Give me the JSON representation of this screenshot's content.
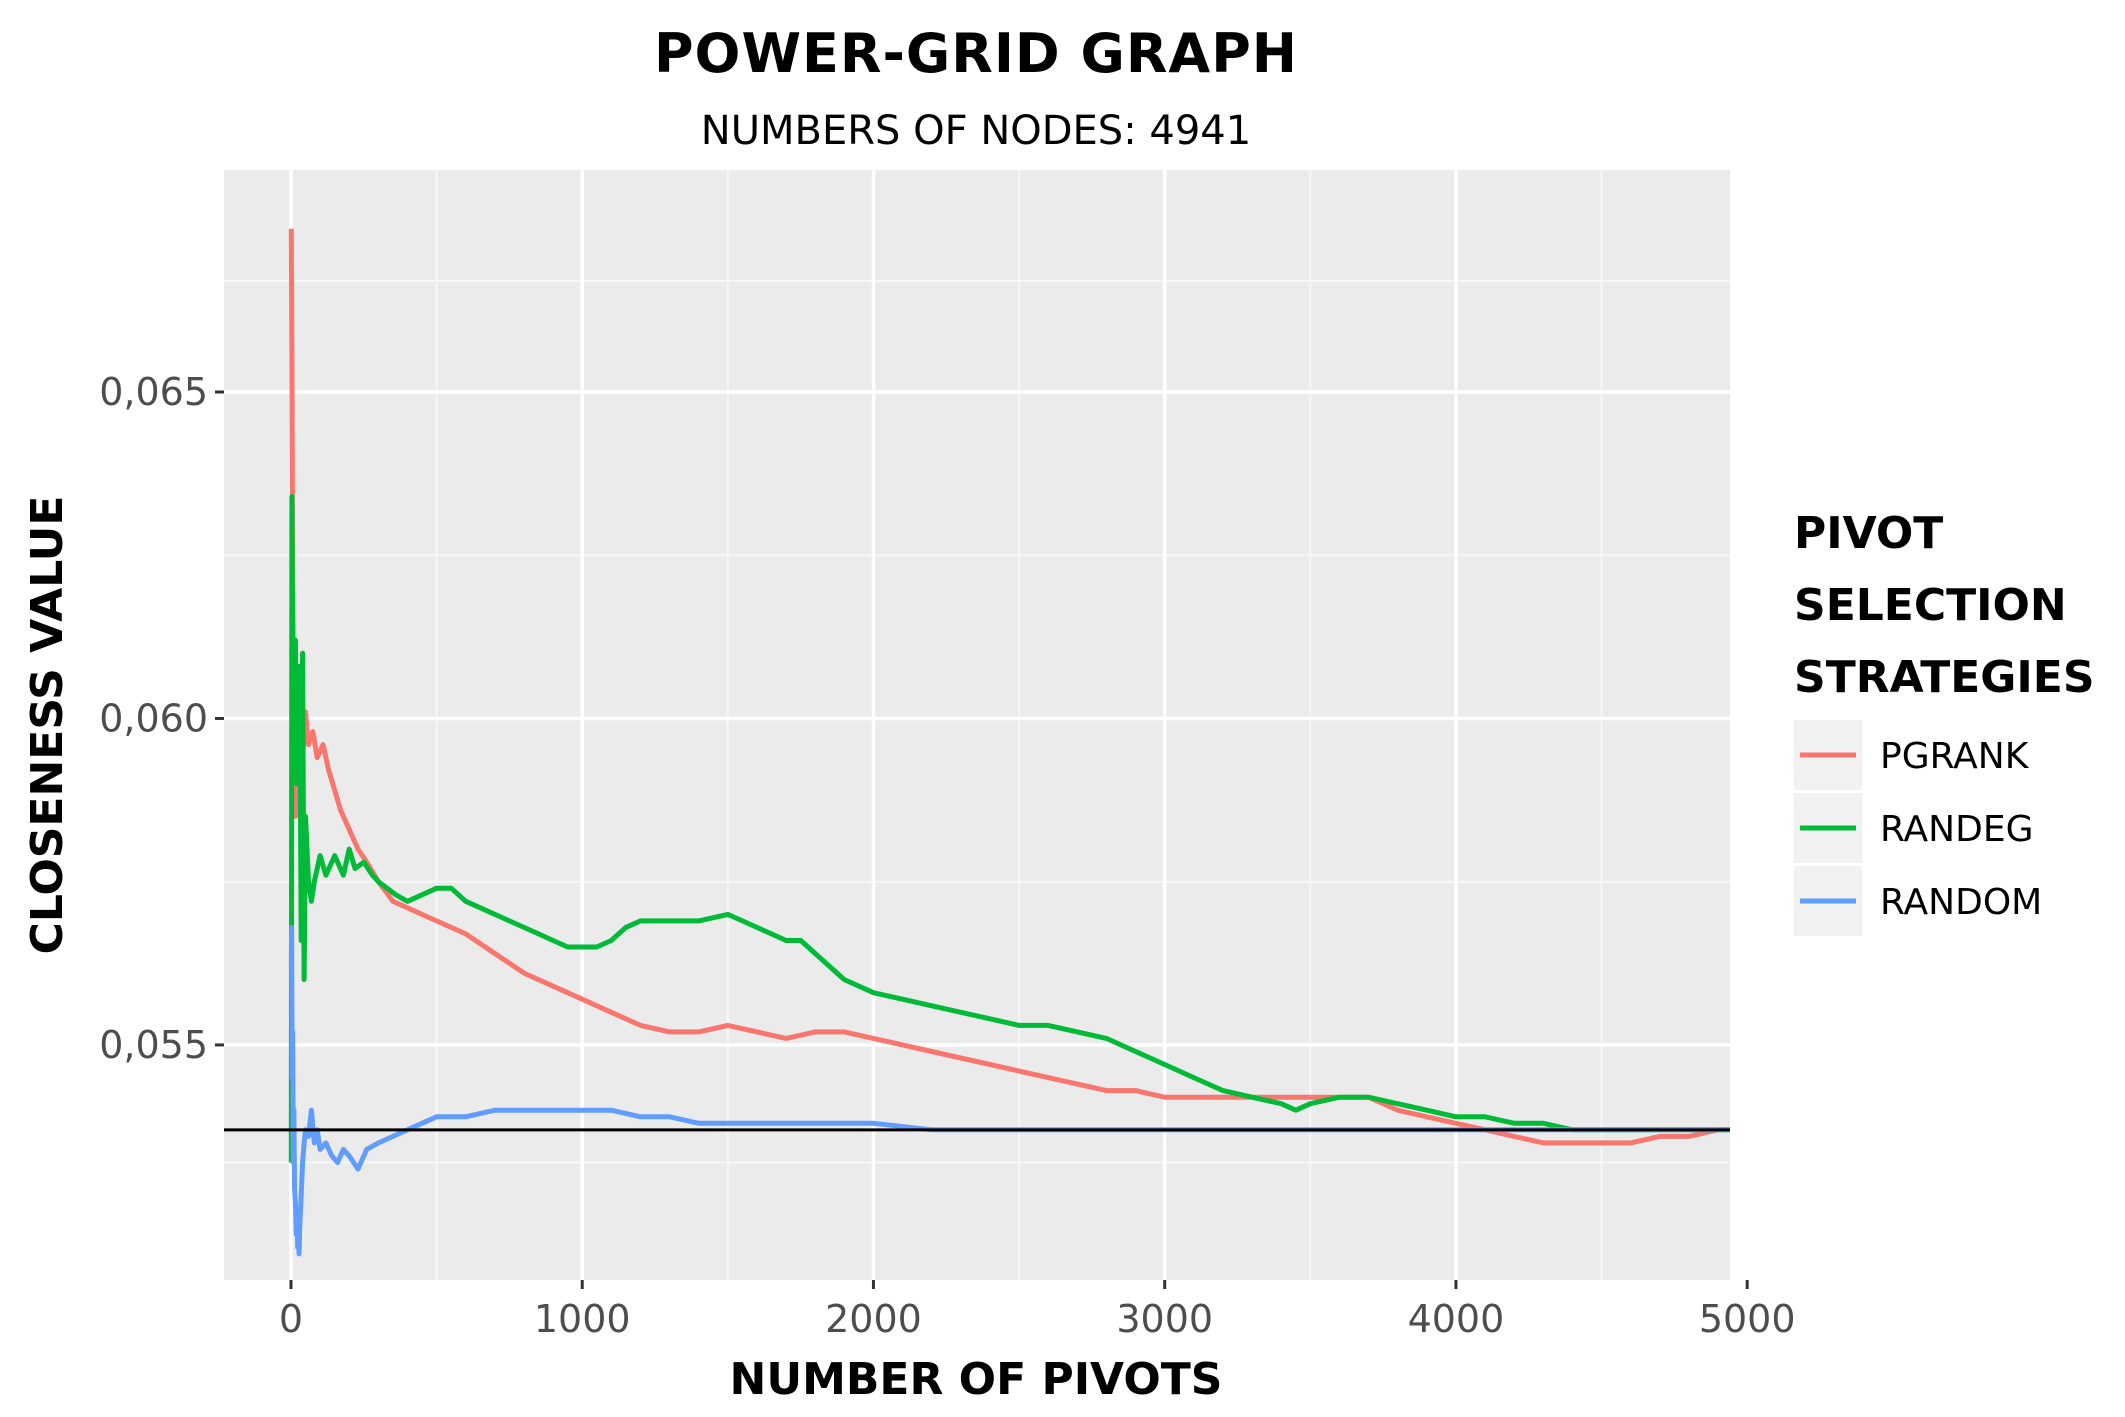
{
  "chart_data": {
    "type": "line",
    "title": "POWER-GRID GRAPH",
    "subtitle": "NUMBERS OF NODES: 4941",
    "xlabel": "NUMBER OF PIVOTS",
    "ylabel": "CLOSENESS VALUE",
    "xlim": [
      -230,
      4941
    ],
    "ylim": [
      0.0514,
      0.0684
    ],
    "x_ticks": [
      0,
      1000,
      2000,
      3000,
      4000,
      5000
    ],
    "x_tick_labels": [
      "0",
      "1000",
      "2000",
      "3000",
      "4000",
      "5000"
    ],
    "y_ticks": [
      0.055,
      0.06,
      0.065
    ],
    "y_tick_labels": [
      "0,055",
      "0,060",
      "0,065"
    ],
    "grid": true,
    "reference_line": {
      "y": 0.0537
    },
    "legend": {
      "title_lines": [
        "PIVOT",
        "SELECTION",
        "STRATEGIES"
      ],
      "position": "right"
    },
    "series": [
      {
        "name": "PGRANK",
        "color": "#f8766d",
        "x": [
          1,
          3,
          6,
          10,
          15,
          20,
          25,
          30,
          40,
          50,
          60,
          75,
          90,
          110,
          130,
          150,
          170,
          200,
          230,
          260,
          300,
          350,
          400,
          450,
          500,
          600,
          700,
          800,
          900,
          1000,
          1100,
          1200,
          1300,
          1400,
          1500,
          1600,
          1700,
          1800,
          1900,
          2000,
          2100,
          2200,
          2300,
          2400,
          2500,
          2600,
          2700,
          2800,
          2900,
          3000,
          3100,
          3200,
          3300,
          3400,
          3500,
          3600,
          3700,
          3800,
          3900,
          4000,
          4100,
          4200,
          4300,
          4400,
          4500,
          4600,
          4700,
          4800,
          4900,
          4941
        ],
        "values": [
          0.0675,
          0.0655,
          0.062,
          0.0598,
          0.0585,
          0.0592,
          0.0598,
          0.0602,
          0.0594,
          0.0601,
          0.0596,
          0.0598,
          0.0594,
          0.0596,
          0.0592,
          0.0589,
          0.0586,
          0.0583,
          0.058,
          0.0578,
          0.0575,
          0.0572,
          0.0571,
          0.057,
          0.0569,
          0.0567,
          0.0564,
          0.0561,
          0.0559,
          0.0557,
          0.0555,
          0.0553,
          0.0552,
          0.0552,
          0.0553,
          0.0552,
          0.0551,
          0.0552,
          0.0552,
          0.0551,
          0.055,
          0.0549,
          0.0548,
          0.0547,
          0.0546,
          0.0545,
          0.0544,
          0.0543,
          0.0543,
          0.0542,
          0.0542,
          0.0542,
          0.0542,
          0.0542,
          0.0542,
          0.0542,
          0.0542,
          0.054,
          0.0539,
          0.0538,
          0.0537,
          0.0536,
          0.0535,
          0.0535,
          0.0535,
          0.0535,
          0.0536,
          0.0536,
          0.0537,
          0.0537
        ]
      },
      {
        "name": "RANDEG",
        "color": "#00ba38",
        "x": [
          1,
          3,
          6,
          10,
          15,
          20,
          25,
          30,
          35,
          40,
          45,
          50,
          60,
          70,
          80,
          100,
          120,
          150,
          180,
          200,
          220,
          250,
          280,
          300,
          330,
          360,
          400,
          450,
          500,
          550,
          600,
          650,
          700,
          750,
          800,
          850,
          900,
          950,
          1000,
          1050,
          1100,
          1150,
          1200,
          1250,
          1300,
          1400,
          1500,
          1550,
          1600,
          1700,
          1750,
          1800,
          1900,
          2000,
          2100,
          2200,
          2300,
          2400,
          2500,
          2600,
          2700,
          2800,
          2900,
          3000,
          3100,
          3200,
          3300,
          3400,
          3450,
          3500,
          3600,
          3650,
          3700,
          3800,
          3900,
          4000,
          4100,
          4200,
          4300,
          4400,
          4500,
          4600,
          4700,
          4800,
          4900,
          4941
        ],
        "values": [
          0.0532,
          0.0634,
          0.0612,
          0.0605,
          0.0612,
          0.059,
          0.0602,
          0.0608,
          0.0566,
          0.061,
          0.056,
          0.0585,
          0.0575,
          0.0572,
          0.0575,
          0.0579,
          0.0576,
          0.0579,
          0.0576,
          0.058,
          0.0577,
          0.0578,
          0.0576,
          0.0575,
          0.0574,
          0.0573,
          0.0572,
          0.0573,
          0.0574,
          0.0574,
          0.0572,
          0.0571,
          0.057,
          0.0569,
          0.0568,
          0.0567,
          0.0566,
          0.0565,
          0.0565,
          0.0565,
          0.0566,
          0.0568,
          0.0569,
          0.0569,
          0.0569,
          0.0569,
          0.057,
          0.0569,
          0.0568,
          0.0566,
          0.0566,
          0.0564,
          0.056,
          0.0558,
          0.0557,
          0.0556,
          0.0555,
          0.0554,
          0.0553,
          0.0553,
          0.0552,
          0.0551,
          0.0549,
          0.0547,
          0.0545,
          0.0543,
          0.0542,
          0.0541,
          0.054,
          0.0541,
          0.0542,
          0.0542,
          0.0542,
          0.0541,
          0.054,
          0.0539,
          0.0539,
          0.0538,
          0.0538,
          0.0537,
          0.0537,
          0.0537,
          0.0537,
          0.0537,
          0.0537,
          0.0537
        ]
      },
      {
        "name": "RANDOM",
        "color": "#619cff",
        "x": [
          1,
          2,
          4,
          6,
          8,
          10,
          12,
          15,
          18,
          20,
          23,
          25,
          28,
          30,
          35,
          40,
          45,
          50,
          60,
          70,
          80,
          90,
          100,
          120,
          140,
          160,
          180,
          200,
          230,
          260,
          300,
          350,
          400,
          450,
          500,
          600,
          700,
          800,
          900,
          1000,
          1100,
          1200,
          1300,
          1400,
          1500,
          1600,
          1700,
          1800,
          1900,
          2000,
          2200,
          2400,
          2600,
          2800,
          3000,
          3200,
          3400,
          3600,
          3800,
          4000,
          4200,
          4400,
          4600,
          4800,
          4941
        ],
        "values": [
          0.0562,
          0.0568,
          0.0545,
          0.0552,
          0.0532,
          0.054,
          0.0528,
          0.0526,
          0.0521,
          0.0525,
          0.0519,
          0.0523,
          0.0518,
          0.0522,
          0.0527,
          0.0532,
          0.0535,
          0.0537,
          0.0536,
          0.054,
          0.0535,
          0.0537,
          0.0534,
          0.0535,
          0.0533,
          0.0532,
          0.0534,
          0.0533,
          0.0531,
          0.0534,
          0.0535,
          0.0536,
          0.0537,
          0.0538,
          0.0539,
          0.0539,
          0.054,
          0.054,
          0.054,
          0.054,
          0.054,
          0.0539,
          0.0539,
          0.0538,
          0.0538,
          0.0538,
          0.0538,
          0.0538,
          0.0538,
          0.0538,
          0.0537,
          0.0537,
          0.0537,
          0.0537,
          0.0537,
          0.0537,
          0.0537,
          0.0537,
          0.0537,
          0.0537,
          0.0537,
          0.0537,
          0.0537,
          0.0537,
          0.0537
        ]
      }
    ]
  }
}
